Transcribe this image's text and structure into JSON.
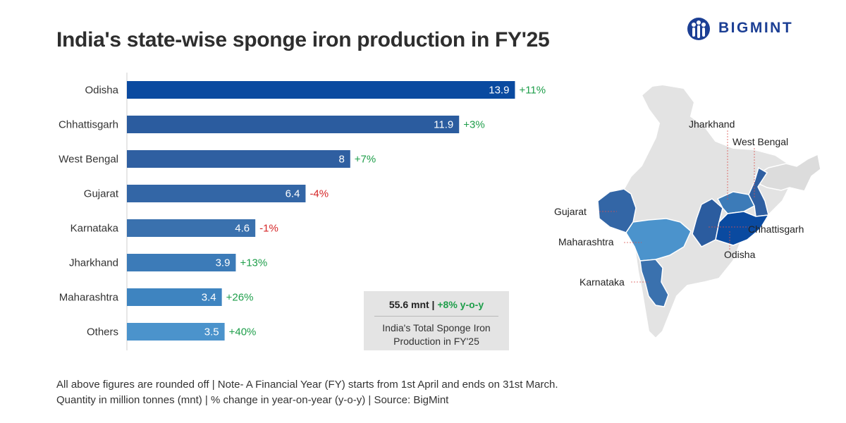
{
  "header": {
    "title": "India's state-wise sponge iron production in FY'25"
  },
  "brand": {
    "name": "BIGMINT",
    "color": "#1c3f94"
  },
  "chart_data": {
    "type": "bar",
    "orientation": "horizontal",
    "title": "India's state-wise sponge iron production in FY'25",
    "unit": "mnt",
    "categories": [
      "Odisha",
      "Chhattisgarh",
      "West Bengal",
      "Gujarat",
      "Karnataka",
      "Jharkhand",
      "Maharashtra",
      "Others"
    ],
    "values": [
      13.9,
      11.9,
      8,
      6.4,
      4.6,
      3.9,
      3.4,
      3.5
    ],
    "changes": [
      "+11%",
      "+3%",
      "+7%",
      "-4%",
      "-1%",
      "+13%",
      "+26%",
      "+40%"
    ],
    "bar_colors": [
      "#0a4aa0",
      "#2b5c9f",
      "#2f5fa1",
      "#3366a6",
      "#3a71ae",
      "#3c7bb8",
      "#3e84c0",
      "#4b93cc"
    ],
    "change_colors": {
      "positive": "#1e9e4a",
      "negative": "#d62728"
    },
    "xlim": [
      0,
      15
    ]
  },
  "summary": {
    "total": "55.6 mnt",
    "separator": " | ",
    "change": "+8% y-o-y",
    "description_line1": "India's Total Sponge Iron",
    "description_line2": "Production in FY'25"
  },
  "map": {
    "labels": [
      "Jharkhand",
      "West Bengal",
      "Gujarat",
      "Chhattisgarh",
      "Maharashtra",
      "Odisha",
      "Karnataka"
    ],
    "colors": {
      "base": "#e3e3e3",
      "border": "#ffffff",
      "odisha": "#0a4aa0",
      "chhattisgarh": "#2b5c9f",
      "west_bengal": "#2f5fa1",
      "gujarat": "#3366a6",
      "karnataka": "#3a71ae",
      "jharkhand": "#3c7bb8",
      "maharashtra": "#4b93cc"
    }
  },
  "footnotes": {
    "line1": "All above figures are rounded off | Note- A Financial Year (FY) starts from 1st April and ends on 31st March.",
    "line2": "Quantity in million tonnes (mnt) | % change in year-on-year (y-o-y) | Source: BigMint"
  }
}
